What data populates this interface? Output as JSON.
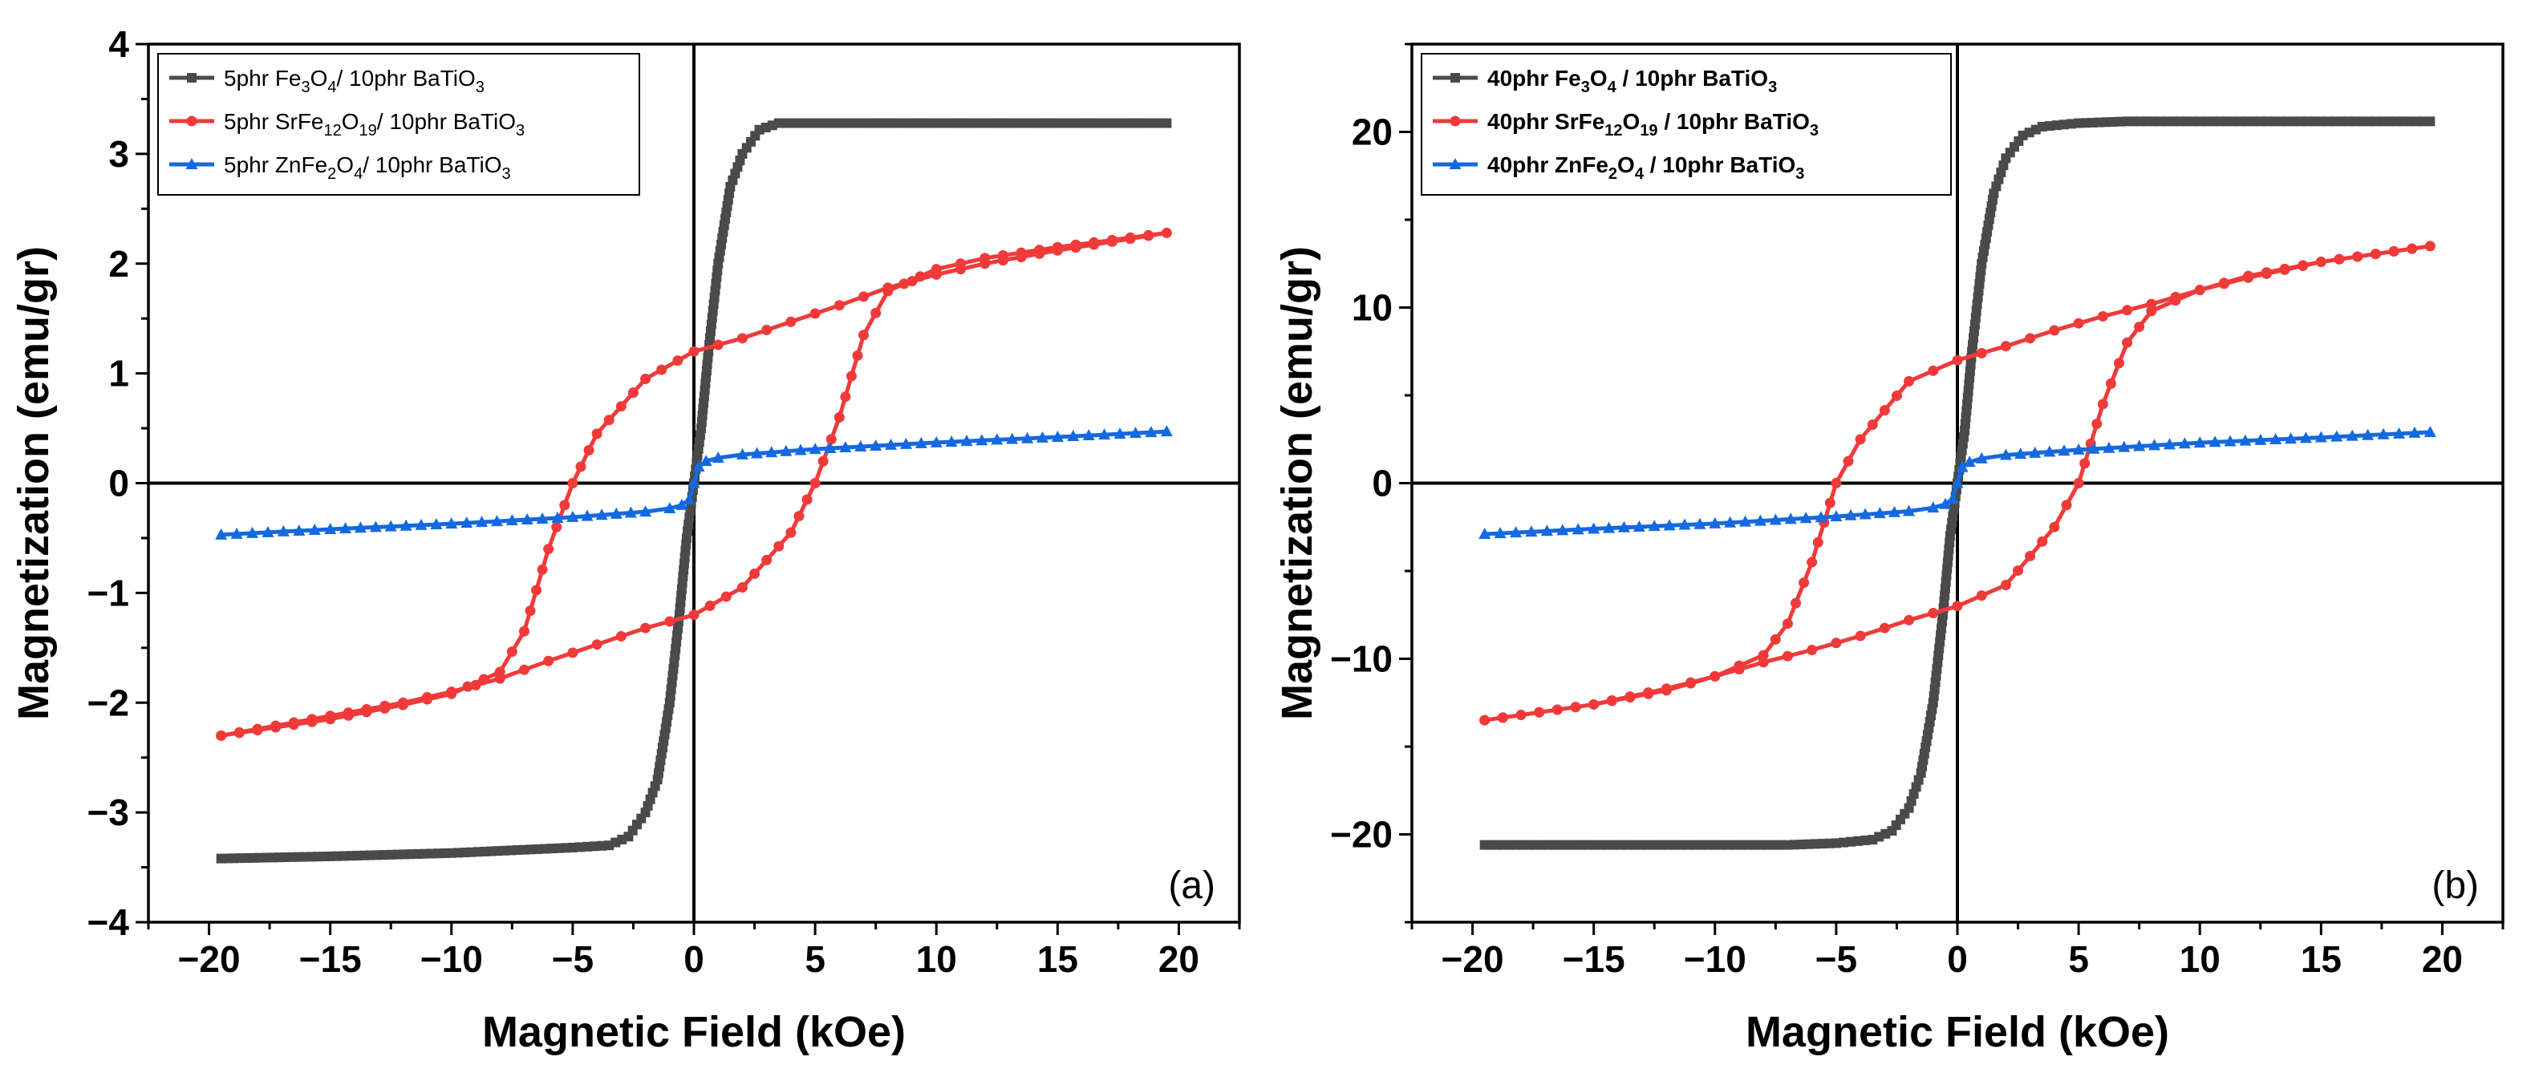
{
  "colors": {
    "fe3o4": "#4a4a4a",
    "srfe": "#f03a3a",
    "znfe": "#1569e0",
    "axis": "#000000"
  },
  "chart_data": [
    {
      "type": "line",
      "panel_label": "(a)",
      "xlabel": "Magnetic Field (kOe)",
      "ylabel": "Magnetization (emu/gr)",
      "xlim": [
        -22.5,
        22.5
      ],
      "ylim": [
        -4,
        4
      ],
      "xticks": [
        -20,
        -15,
        -10,
        -5,
        0,
        5,
        10,
        15,
        20
      ],
      "xtick_labels": [
        "−20",
        "−15",
        "−10",
        "−5",
        "0",
        "5",
        "10",
        "15",
        "20"
      ],
      "yticks": [
        -4,
        -3,
        -2,
        -1,
        0,
        1,
        2,
        3,
        4
      ],
      "ytick_labels": [
        "−4",
        "−3",
        "−2",
        "−1",
        "0",
        "1",
        "2",
        "3",
        "4"
      ],
      "legend_bold": false,
      "series": [
        {
          "name": "5phr Fe3O4/ 10phr BaTiO3",
          "legend_parts": [
            [
              "5phr Fe",
              ""
            ],
            [
              "3",
              "sub"
            ],
            [
              "O",
              ""
            ],
            [
              "4",
              "sub"
            ],
            [
              "/ 10phr BaTiO",
              ""
            ],
            [
              "3",
              "sub"
            ]
          ],
          "color_key": "fe3o4",
          "marker": "square",
          "x": [
            -19.5,
            -15,
            -10,
            -7,
            -5,
            -3.5,
            -2.7,
            -2.0,
            -1.5,
            -1.0,
            -0.6,
            -0.3,
            0.0,
            0.3,
            0.6,
            1.0,
            1.5,
            2.0,
            2.7,
            3.5,
            5,
            7,
            10,
            15,
            19.5
          ],
          "y": [
            -3.42,
            -3.4,
            -3.37,
            -3.34,
            -3.32,
            -3.3,
            -3.22,
            -3.0,
            -2.7,
            -2.0,
            -1.2,
            -0.5,
            0.0,
            0.5,
            1.2,
            2.0,
            2.7,
            3.0,
            3.22,
            3.28,
            3.28,
            3.28,
            3.28,
            3.28,
            3.28
          ]
        },
        {
          "name": "5phr SrFe12O19/ 10phr BaTiO3",
          "legend_parts": [
            [
              "5phr SrFe",
              ""
            ],
            [
              "12",
              "sub"
            ],
            [
              "O",
              ""
            ],
            [
              "19",
              "sub"
            ],
            [
              "/ 10phr BaTiO",
              ""
            ],
            [
              "3",
              "sub"
            ]
          ],
          "color_key": "srfe",
          "marker": "circle",
          "x": [
            -19.5,
            -15,
            -12,
            -10,
            -8,
            -6,
            -4,
            -2,
            0,
            2,
            4,
            5,
            6,
            7,
            8,
            10,
            12,
            15,
            19.5,
            15,
            12,
            10,
            8,
            6,
            4,
            2,
            0,
            -2,
            -4,
            -5,
            -6,
            -7,
            -8,
            -10,
            -12,
            -15,
            -19.5
          ],
          "y": [
            -2.3,
            -2.12,
            -2.0,
            -1.9,
            -1.78,
            -1.62,
            -1.47,
            -1.32,
            -1.2,
            -0.95,
            -0.45,
            0.0,
            0.6,
            1.35,
            1.75,
            1.95,
            2.05,
            2.15,
            2.28,
            2.12,
            2.0,
            1.9,
            1.78,
            1.62,
            1.47,
            1.32,
            1.2,
            0.95,
            0.45,
            0.0,
            -0.6,
            -1.35,
            -1.72,
            -1.92,
            -2.02,
            -2.15,
            -2.3
          ]
        },
        {
          "name": "5phr ZnFe2O4/ 10phr BaTiO3",
          "legend_parts": [
            [
              "5phr ZnFe",
              ""
            ],
            [
              "2",
              "sub"
            ],
            [
              "O",
              ""
            ],
            [
              "4",
              "sub"
            ],
            [
              "/ 10phr BaTiO",
              ""
            ],
            [
              "3",
              "sub"
            ]
          ],
          "color_key": "znfe",
          "marker": "triangle",
          "x": [
            -19.5,
            -15,
            -10,
            -5,
            -2,
            -1,
            -0.5,
            -0.2,
            0.0,
            0.2,
            0.5,
            1,
            2,
            5,
            10,
            15,
            19.5
          ],
          "y": [
            -0.47,
            -0.42,
            -0.37,
            -0.31,
            -0.26,
            -0.23,
            -0.2,
            -0.15,
            0.0,
            0.15,
            0.2,
            0.23,
            0.26,
            0.31,
            0.37,
            0.42,
            0.47
          ]
        }
      ]
    },
    {
      "type": "line",
      "panel_label": "(b)",
      "xlabel": "Magnetic Field (kOe)",
      "ylabel": "Magnetization (emu/gr)",
      "xlim": [
        -22.5,
        22.5
      ],
      "ylim": [
        -25,
        25
      ],
      "xticks": [
        -20,
        -15,
        -10,
        -5,
        0,
        5,
        10,
        15,
        20
      ],
      "xtick_labels": [
        "−20",
        "−15",
        "−10",
        "−5",
        "0",
        "5",
        "10",
        "15",
        "20"
      ],
      "yticks": [
        -20,
        -10,
        0,
        10,
        20
      ],
      "ytick_labels": [
        "−20",
        "−10",
        "0",
        "10",
        "20"
      ],
      "legend_bold": true,
      "series": [
        {
          "name": "40phr Fe3O4 / 10phr BaTiO3",
          "legend_parts": [
            [
              "40phr Fe",
              ""
            ],
            [
              "3",
              "sub"
            ],
            [
              "O",
              ""
            ],
            [
              "4",
              "sub"
            ],
            [
              " / 10phr BaTiO",
              ""
            ],
            [
              "3",
              "sub"
            ]
          ],
          "color_key": "fe3o4",
          "marker": "square",
          "x": [
            -19.5,
            -15,
            -10,
            -7,
            -5,
            -3.5,
            -2.7,
            -2.0,
            -1.5,
            -1.0,
            -0.6,
            -0.3,
            0.0,
            0.3,
            0.6,
            1.0,
            1.5,
            2.0,
            2.7,
            3.5,
            5,
            7,
            10,
            15,
            19.5
          ],
          "y": [
            -20.6,
            -20.6,
            -20.6,
            -20.6,
            -20.5,
            -20.3,
            -19.8,
            -18.5,
            -16.5,
            -12.5,
            -7.5,
            -3.0,
            0.0,
            3.0,
            7.5,
            12.5,
            16.5,
            18.5,
            19.8,
            20.3,
            20.5,
            20.6,
            20.6,
            20.6,
            20.6
          ]
        },
        {
          "name": "40phr SrFe12O19 / 10phr BaTiO3",
          "legend_parts": [
            [
              "40phr SrFe",
              ""
            ],
            [
              "12",
              "sub"
            ],
            [
              "O",
              ""
            ],
            [
              "19",
              "sub"
            ],
            [
              " / 10phr BaTiO",
              ""
            ],
            [
              "3",
              "sub"
            ]
          ],
          "color_key": "srfe",
          "marker": "circle",
          "x": [
            -19.5,
            -15,
            -12,
            -10,
            -8,
            -6,
            -4,
            -2,
            0,
            2,
            4,
            5,
            6,
            7,
            8,
            10,
            12,
            15,
            19.5,
            15,
            12,
            10,
            8,
            6,
            4,
            2,
            0,
            -2,
            -4,
            -5,
            -6,
            -7,
            -8,
            -10,
            -12,
            -15,
            -19.5
          ],
          "y": [
            -13.5,
            -12.6,
            -11.7,
            -11.0,
            -10.2,
            -9.5,
            -8.7,
            -7.8,
            -7.0,
            -5.8,
            -2.5,
            0.0,
            4.5,
            8.0,
            9.8,
            11.0,
            11.8,
            12.6,
            13.5,
            12.6,
            11.7,
            11.0,
            10.2,
            9.5,
            8.7,
            7.8,
            7.0,
            5.8,
            2.5,
            0.0,
            -4.5,
            -8.0,
            -9.8,
            -11.0,
            -11.8,
            -12.6,
            -13.5
          ]
        },
        {
          "name": "40phr ZnFe2O4 / 10phr BaTiO3",
          "legend_parts": [
            [
              "40phr ZnFe",
              ""
            ],
            [
              "2",
              "sub"
            ],
            [
              "O",
              ""
            ],
            [
              "4",
              "sub"
            ],
            [
              " / 10phr BaTiO",
              ""
            ],
            [
              "3",
              "sub"
            ]
          ],
          "color_key": "znfe",
          "marker": "triangle",
          "x": [
            -19.5,
            -15,
            -10,
            -5,
            -2,
            -1,
            -0.5,
            -0.2,
            0.0,
            0.2,
            0.5,
            1,
            2,
            5,
            10,
            15,
            19.5
          ],
          "y": [
            -2.9,
            -2.6,
            -2.3,
            -1.9,
            -1.6,
            -1.4,
            -1.2,
            -0.9,
            0.0,
            0.9,
            1.2,
            1.4,
            1.6,
            1.9,
            2.3,
            2.6,
            2.9
          ]
        }
      ]
    }
  ]
}
